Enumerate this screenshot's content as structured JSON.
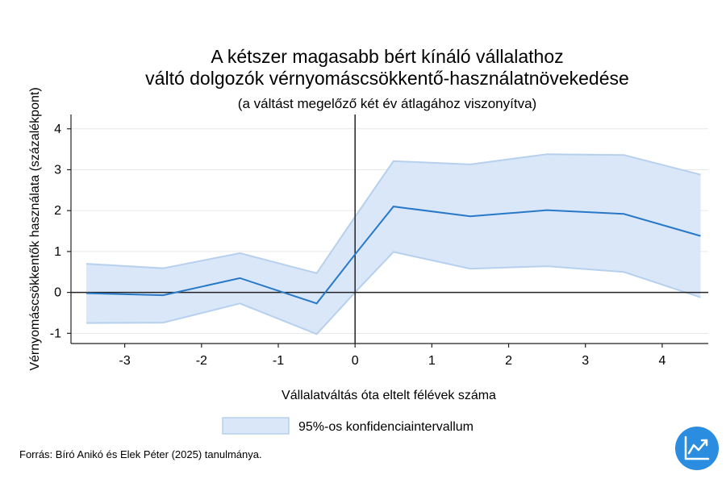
{
  "chart_data": {
    "type": "line",
    "title_lines": [
      "A kétszer magasabb bért kínáló vállalathoz",
      "váltó dolgozók vérnyomáscsökkentő-használatnövekedése"
    ],
    "subtitle": "(a váltást megelőző két év átlagához viszonyítva)",
    "xlabel": "Vállalatváltás óta eltelt félévek száma",
    "ylabel": "Vérnyomáscsökkentők használata (százalékpont)",
    "xlim": [
      -3.7,
      4.6
    ],
    "ylim": [
      -1.25,
      4.35
    ],
    "xticks": [
      -3,
      -2,
      -1,
      0,
      1,
      2,
      3,
      4
    ],
    "yticks": [
      -1,
      0,
      1,
      2,
      3,
      4
    ],
    "grid": true,
    "reference_lines": {
      "x": 0,
      "y": 0
    },
    "x": [
      -3.5,
      -2.5,
      -1.5,
      -0.5,
      0,
      0.5,
      1.5,
      2.5,
      3.5,
      4.5
    ],
    "series": [
      {
        "values": [
          -0.02,
          -0.07,
          0.35,
          -0.27,
          0.93,
          2.1,
          1.86,
          2.01,
          1.92,
          1.38
        ],
        "color": "#2878c8"
      }
    ],
    "confidence_band": {
      "name": "95%-os konfidenciaintervallum",
      "lower": [
        -0.75,
        -0.74,
        -0.27,
        -1.02,
        0.0,
        0.99,
        0.58,
        0.64,
        0.5,
        -0.12
      ],
      "upper": [
        0.7,
        0.59,
        0.96,
        0.47,
        1.85,
        3.21,
        3.13,
        3.38,
        3.36,
        2.88
      ],
      "fill": "#dae7f8",
      "stroke": "#b6d0ee"
    },
    "legend_position": "bottom"
  },
  "source": "Forrás: Bíró Anikó és Elek Péter (2025) tanulmánya.",
  "logo": {
    "icon": "trend-chart-icon",
    "color": "#2a8de0"
  }
}
